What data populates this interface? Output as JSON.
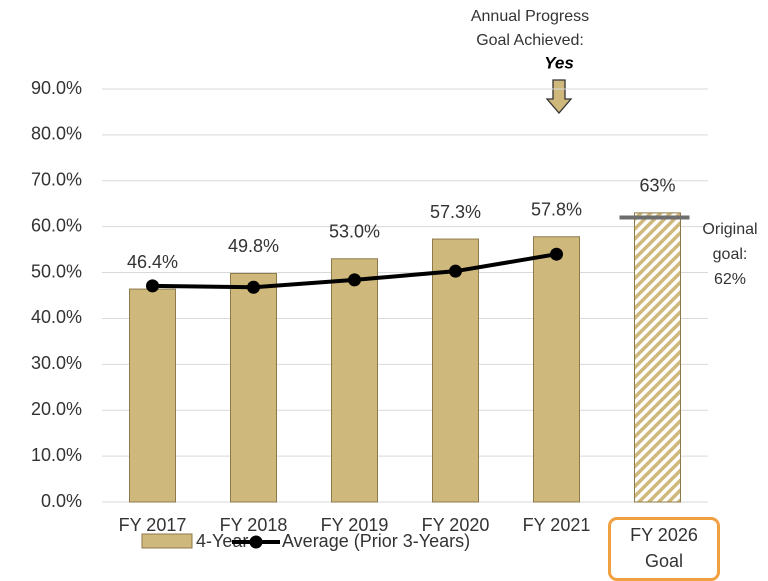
{
  "chart_data": {
    "type": "bar",
    "annotation_lines": [
      "Annual Progress",
      "Goal Achieved:",
      "Yes"
    ],
    "categories": [
      "FY 2017",
      "FY 2018",
      "FY 2019",
      "FY 2020",
      "FY 2021",
      "FY 2026 Goal"
    ],
    "series": [
      {
        "name": "4-Year",
        "type": "bar",
        "color": "#cfb87c",
        "values": [
          46.4,
          49.8,
          53.0,
          57.3,
          57.8,
          63
        ],
        "value_labels": [
          "46.4%",
          "49.8%",
          "53.0%",
          "57.3%",
          "57.8%",
          "63%"
        ],
        "hatched": [
          false,
          false,
          false,
          false,
          false,
          true
        ]
      },
      {
        "name": "Average (Prior 3-Years)",
        "type": "line",
        "color": "#000000",
        "values": [
          47.1,
          46.8,
          48.4,
          50.3,
          54.0,
          null
        ]
      }
    ],
    "goal_line": {
      "value": 62,
      "color": "#6d6d6d",
      "label_lines": [
        "Original",
        "goal:",
        "62%"
      ]
    },
    "ylim": [
      0,
      90
    ],
    "yticks": [
      {
        "value": 0,
        "label": "0.0%"
      },
      {
        "value": 10,
        "label": "10.0%"
      },
      {
        "value": 20,
        "label": "20.0%"
      },
      {
        "value": 30,
        "label": "30.0%"
      },
      {
        "value": 40,
        "label": "40.0%"
      },
      {
        "value": 50,
        "label": "50.0%"
      },
      {
        "value": 60,
        "label": "60.0%"
      },
      {
        "value": 70,
        "label": "70.0%"
      },
      {
        "value": 80,
        "label": "80.0%"
      },
      {
        "value": 90,
        "label": "90.0%"
      }
    ],
    "grid": true
  }
}
